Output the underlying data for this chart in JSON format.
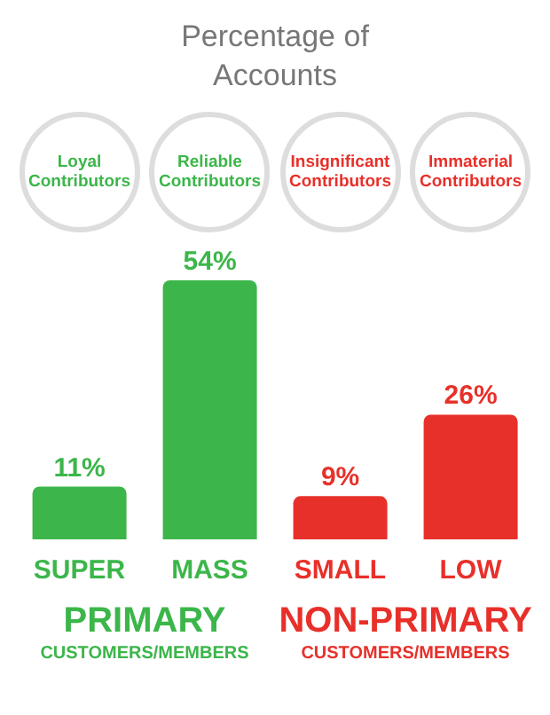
{
  "chart_data": {
    "type": "bar",
    "title": "Percentage of Accounts",
    "categories": [
      "SUPER",
      "MASS",
      "SMALL",
      "LOW"
    ],
    "values": [
      11,
      54,
      9,
      26
    ],
    "colors": [
      "#3cb64a",
      "#3cb64a",
      "#e8302a",
      "#e8302a"
    ],
    "value_labels": [
      "11%",
      "54%",
      "9%",
      "26%"
    ],
    "annotations": [
      "Loyal Contributors",
      "Reliable Contributors",
      "Insignificant Contributors",
      "Immaterial Contributors",
      "PRIMARY",
      "CUSTOMERS/MEMBERS",
      "NON-PRIMARY",
      "CUSTOMERS/MEMBERS"
    ]
  }
}
